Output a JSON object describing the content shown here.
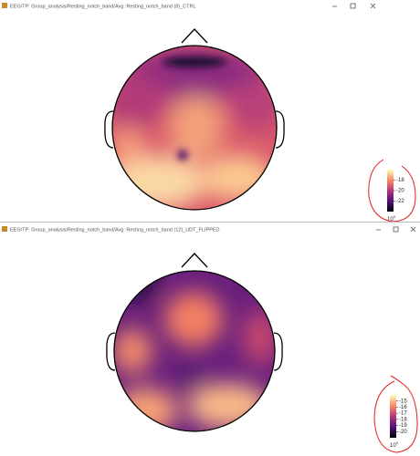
{
  "windows": [
    {
      "title": "EEG/TP: Group_analysis/Resting_notch_band/Avg: Resting_notch_band (8)_CTRL",
      "colorbar": {
        "ticks": [
          -18,
          -20,
          -22
        ],
        "scale": {
          "base": "10",
          "exponent": "0"
        }
      }
    },
    {
      "title": "EEG/TP: Group_analysis/Resting_notch_band/Avg: Resting_notch_band (12)_UDT_FLIPPED",
      "colorbar": {
        "ticks": [
          -15,
          -16,
          -17,
          -18,
          -19,
          -20
        ],
        "scale": {
          "base": "10",
          "exponent": "0"
        }
      }
    }
  ]
}
